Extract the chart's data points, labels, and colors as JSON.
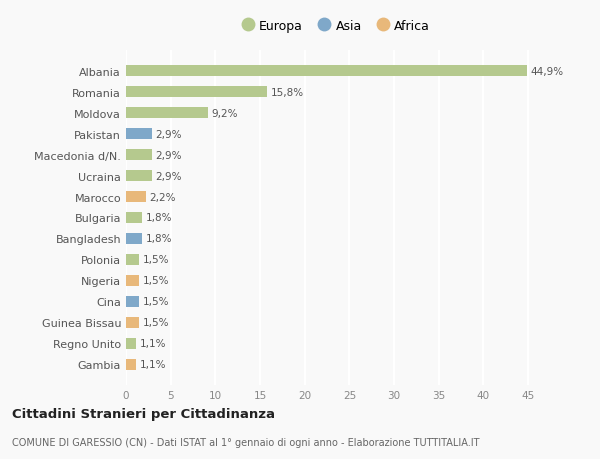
{
  "categories": [
    "Albania",
    "Romania",
    "Moldova",
    "Pakistan",
    "Macedonia d/N.",
    "Ucraina",
    "Marocco",
    "Bulgaria",
    "Bangladesh",
    "Polonia",
    "Nigeria",
    "Cina",
    "Guinea Bissau",
    "Regno Unito",
    "Gambia"
  ],
  "values": [
    44.9,
    15.8,
    9.2,
    2.9,
    2.9,
    2.9,
    2.2,
    1.8,
    1.8,
    1.5,
    1.5,
    1.5,
    1.5,
    1.1,
    1.1
  ],
  "continent": [
    "Europa",
    "Europa",
    "Europa",
    "Asia",
    "Europa",
    "Europa",
    "Africa",
    "Europa",
    "Asia",
    "Europa",
    "Africa",
    "Asia",
    "Africa",
    "Europa",
    "Africa"
  ],
  "colors": {
    "Europa": "#b5c98e",
    "Asia": "#7fa8c9",
    "Africa": "#e8b87a"
  },
  "legend_colors": {
    "Europa": "#b5c98e",
    "Asia": "#7fa8c9",
    "Africa": "#e8b87a"
  },
  "title": "Cittadini Stranieri per Cittadinanza",
  "subtitle": "COMUNE DI GARESSIO (CN) - Dati ISTAT al 1° gennaio di ogni anno - Elaborazione TUTTITALIA.IT",
  "xlim": [
    0,
    47
  ],
  "xticks": [
    0,
    5,
    10,
    15,
    20,
    25,
    30,
    35,
    40,
    45
  ],
  "background_color": "#f9f9f9",
  "grid_color": "#e8e8e8",
  "bar_height": 0.55
}
